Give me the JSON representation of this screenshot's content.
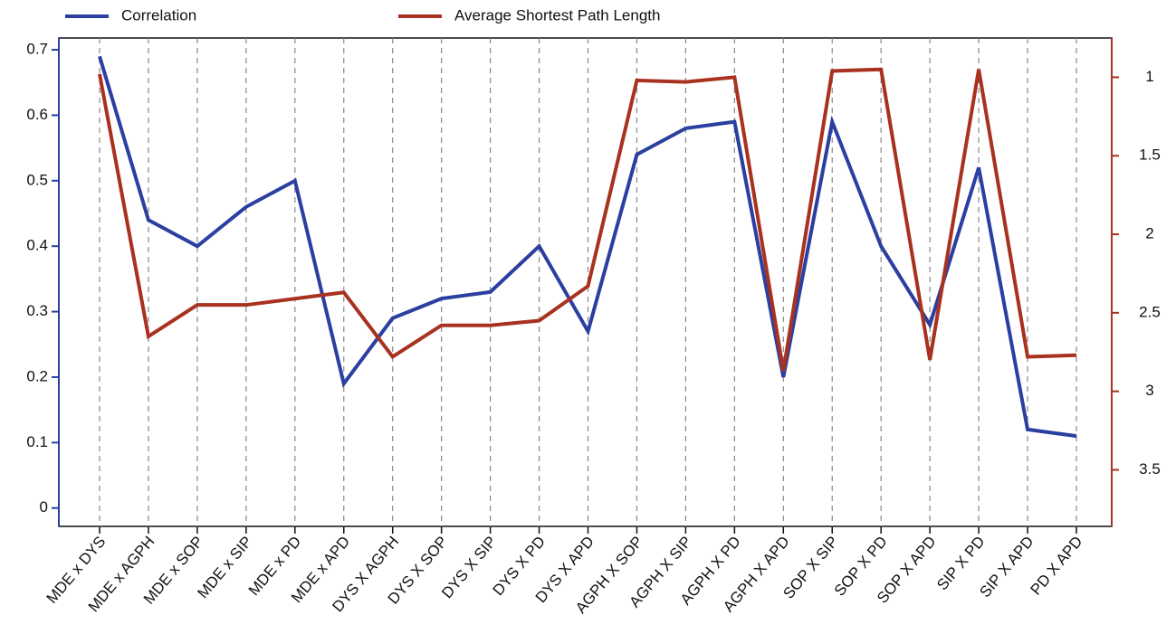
{
  "chart_data": {
    "type": "line",
    "categories": [
      "MDE x DYS",
      "MDE x AGPH",
      "MDE x SOP",
      "MDE x SIP",
      "MDE x PD",
      "MDE x APD",
      "DYS X AGPH",
      "DYS X SOP",
      "DYS X SIP",
      "DYS X PD",
      "DYS X APD",
      "AGPH X SOP",
      "AGPH X SIP",
      "AGPH X PD",
      "AGPH X APD",
      "SOP X SIP",
      "SOP X PD",
      "SOP X APD",
      "SIP X PD",
      "SIP X APD",
      "PD X APD"
    ],
    "series": [
      {
        "name": "Correlation",
        "color": "#2b3fa0",
        "values": [
          0.69,
          0.44,
          0.4,
          0.46,
          0.5,
          0.19,
          0.29,
          0.32,
          0.33,
          0.4,
          0.27,
          0.54,
          0.58,
          0.59,
          0.2,
          0.59,
          0.4,
          0.28,
          0.52,
          0.12,
          0.11
        ]
      },
      {
        "name": "Average Shortest Path Length",
        "color": "#a8321f",
        "axis": "y2",
        "values": [
          0.98,
          2.65,
          2.45,
          2.45,
          2.41,
          2.37,
          2.78,
          2.58,
          2.58,
          2.55,
          2.33,
          1.02,
          1.03,
          1.0,
          2.87,
          0.96,
          0.95,
          2.8,
          0.95,
          2.78,
          2.77
        ]
      }
    ],
    "ylim": [
      -0.028,
      0.718
    ],
    "yticks": [
      0,
      0.1,
      0.2,
      0.3,
      0.4,
      0.5,
      0.6,
      0.7
    ],
    "y2lim": [
      3.86,
      0.75
    ],
    "y2ticks": [
      1,
      1.5,
      2,
      2.5,
      3,
      3.5
    ],
    "grid": true
  }
}
